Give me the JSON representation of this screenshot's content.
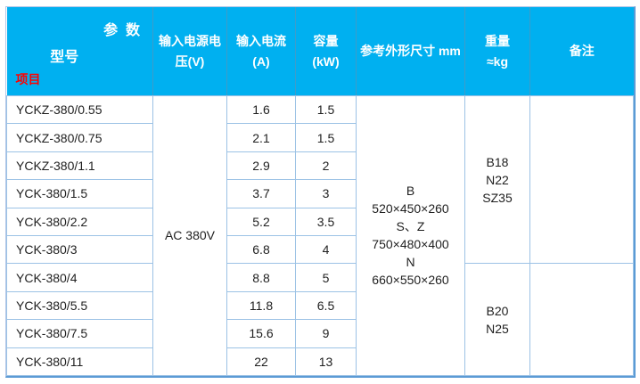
{
  "header": {
    "corner_top": "参  数",
    "corner_middle": "型号",
    "corner_bottom": "项目",
    "columns": [
      {
        "lines": [
          "输入电源电",
          "压(V)"
        ]
      },
      {
        "lines": [
          "输入电流",
          "(A)"
        ]
      },
      {
        "lines": [
          "容量",
          "(kW)"
        ]
      },
      {
        "lines": [
          "参考外形尺寸 mm"
        ]
      },
      {
        "lines": [
          "重量",
          "≈kg"
        ]
      },
      {
        "lines": [
          "备注"
        ]
      }
    ]
  },
  "body": {
    "voltage": "AC 380V",
    "dimensions_lines": [
      "B",
      "520×450×260",
      "S、Z",
      "750×480×400",
      "N",
      "660×550×260"
    ],
    "weight_groups": [
      {
        "lines": [
          "B18",
          "N22",
          "SZ35"
        ],
        "row_span": 6,
        "remark": ""
      },
      {
        "lines": [
          "B20",
          "N25"
        ],
        "row_span": 4,
        "remark": ""
      }
    ],
    "rows": [
      {
        "model": "YCKZ-380/0.55",
        "current": "1.6",
        "capacity": "1.5"
      },
      {
        "model": "YCKZ-380/0.75",
        "current": "2.1",
        "capacity": "1.5"
      },
      {
        "model": "YCKZ-380/1.1",
        "current": "2.9",
        "capacity": "2"
      },
      {
        "model": "YCK-380/1.5",
        "current": "3.7",
        "capacity": "3"
      },
      {
        "model": "YCK-380/2.2",
        "current": "5.2",
        "capacity": "3.5"
      },
      {
        "model": "YCK-380/3",
        "current": "6.8",
        "capacity": "4"
      },
      {
        "model": "YCK-380/4",
        "current": "8.8",
        "capacity": "5"
      },
      {
        "model": "YCK-380/5.5",
        "current": "11.8",
        "capacity": "6.5"
      },
      {
        "model": "YCK-380/7.5",
        "current": "15.6",
        "capacity": "9"
      },
      {
        "model": "YCK-380/11",
        "current": "22",
        "capacity": "13"
      }
    ]
  },
  "colors": {
    "header_bg": "#00B0F0",
    "header_text": "#FFFFFF",
    "header_divider": "#3E9CC9",
    "grid_line": "#9CC2E5",
    "outer_border": "#5B9BD5",
    "outer_border_light": "#B4C7E7",
    "body_text": "#1F1F1F",
    "project_label_red": "#FF0000",
    "page_bg": "#FFFFFF"
  }
}
